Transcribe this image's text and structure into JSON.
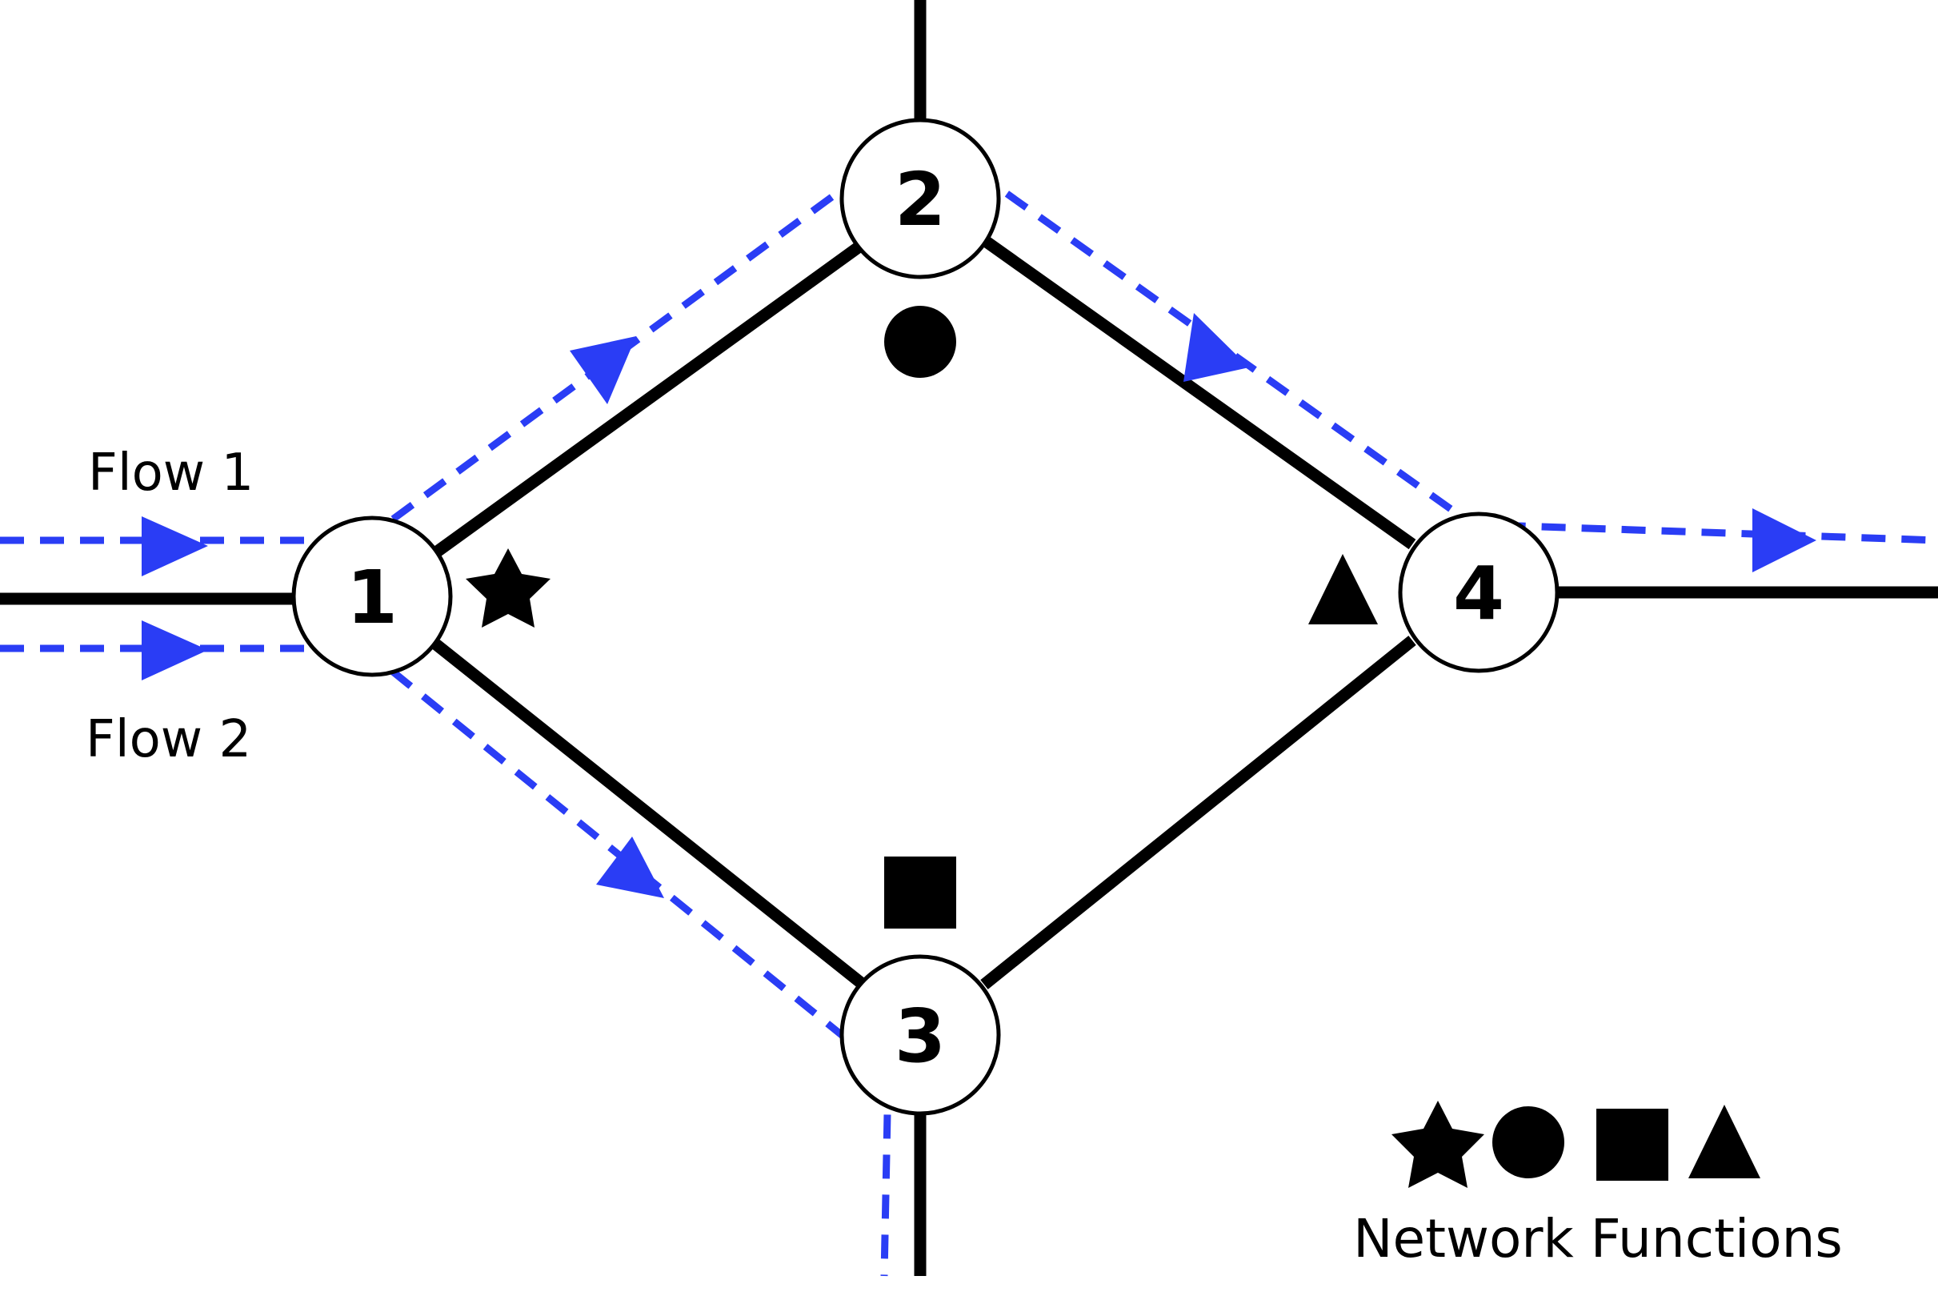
{
  "nodes": [
    {
      "id": "1",
      "label": "1"
    },
    {
      "id": "2",
      "label": "2"
    },
    {
      "id": "3",
      "label": "3"
    },
    {
      "id": "4",
      "label": "4"
    }
  ],
  "flows": [
    {
      "label": "Flow 1",
      "path": [
        "1",
        "2",
        "4"
      ]
    },
    {
      "label": "Flow 2",
      "path": [
        "1",
        "3"
      ]
    }
  ],
  "network_functions": [
    {
      "node": "1",
      "shape": "star"
    },
    {
      "node": "2",
      "shape": "circle"
    },
    {
      "node": "3",
      "shape": "square"
    },
    {
      "node": "4",
      "shape": "triangle"
    }
  ],
  "legend": {
    "label": "Network Functions",
    "shapes": [
      "star",
      "circle",
      "square",
      "triangle"
    ]
  },
  "colors": {
    "link": "#000000",
    "flow": "#2a3df5",
    "node_fill": "#ffffff"
  }
}
